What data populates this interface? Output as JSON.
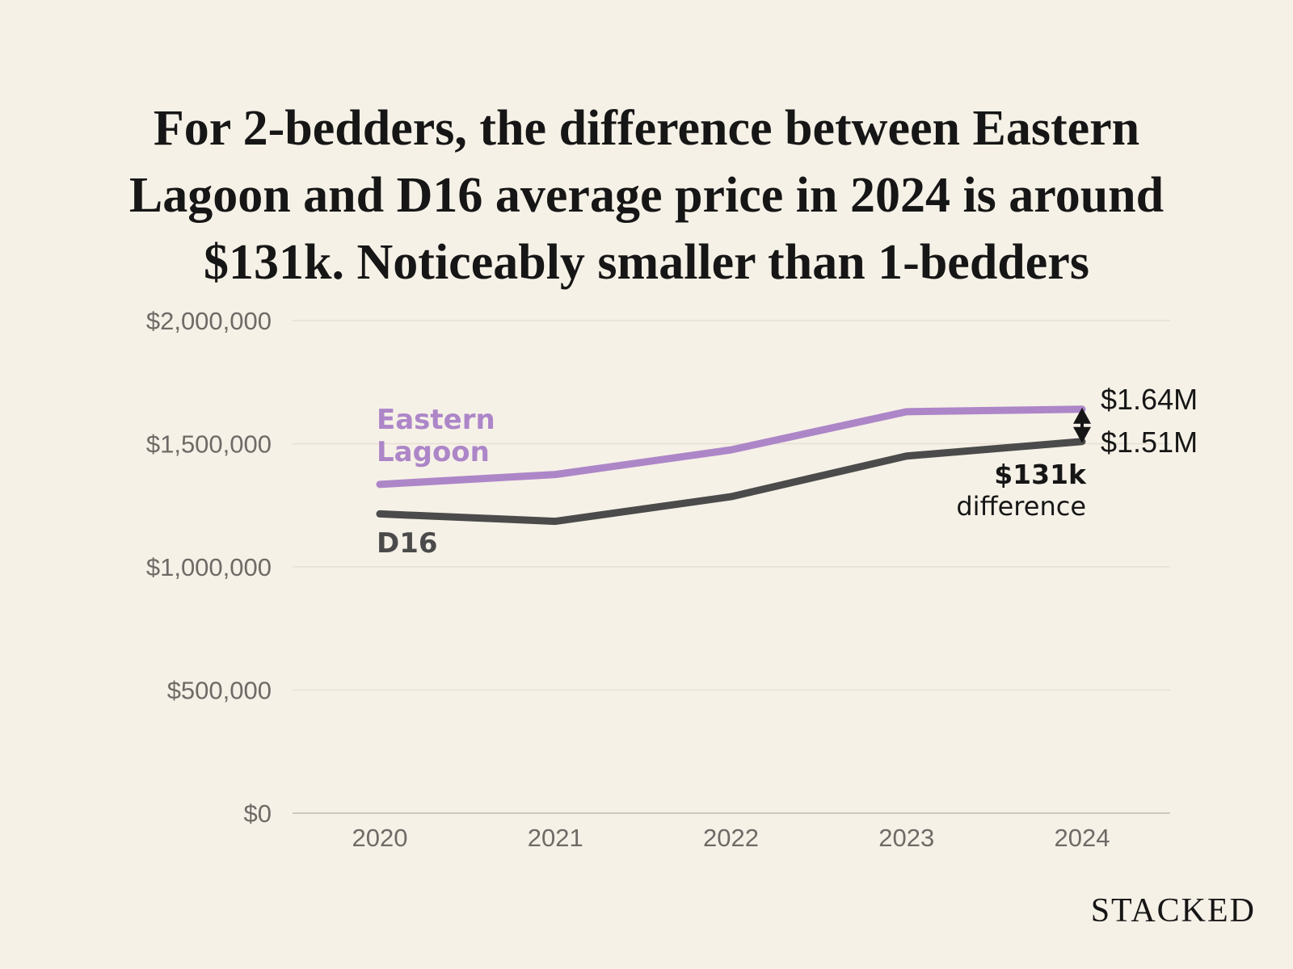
{
  "chart_data": {
    "type": "line",
    "title": "For 2-bedders, the difference between Eastern Lagoon and D16 average price in 2024 is around $131k. Noticeably smaller than 1-bedders",
    "x": [
      "2020",
      "2021",
      "2022",
      "2023",
      "2024"
    ],
    "y_ticks": [
      "$0",
      "$500,000",
      "$1,000,000",
      "$1,500,000",
      "$2,000,000"
    ],
    "y_tick_values": [
      0,
      500000,
      1000000,
      1500000,
      2000000
    ],
    "ylim": [
      0,
      2000000
    ],
    "grid": true,
    "series": [
      {
        "name": "Eastern Lagoon",
        "name_lines": [
          "Eastern",
          "Lagoon"
        ],
        "color": "#ad86c8",
        "values": [
          1335000,
          1375000,
          1475000,
          1630000,
          1640000
        ],
        "end_label": "$1.64M"
      },
      {
        "name": "D16",
        "name_lines": [
          "D16"
        ],
        "color": "#4b4b4b",
        "values": [
          1215000,
          1185000,
          1285000,
          1450000,
          1509000
        ],
        "end_label": "$1.51M"
      }
    ],
    "annotation": {
      "value": "$131k",
      "caption": "difference"
    }
  },
  "brand": "STACKED"
}
